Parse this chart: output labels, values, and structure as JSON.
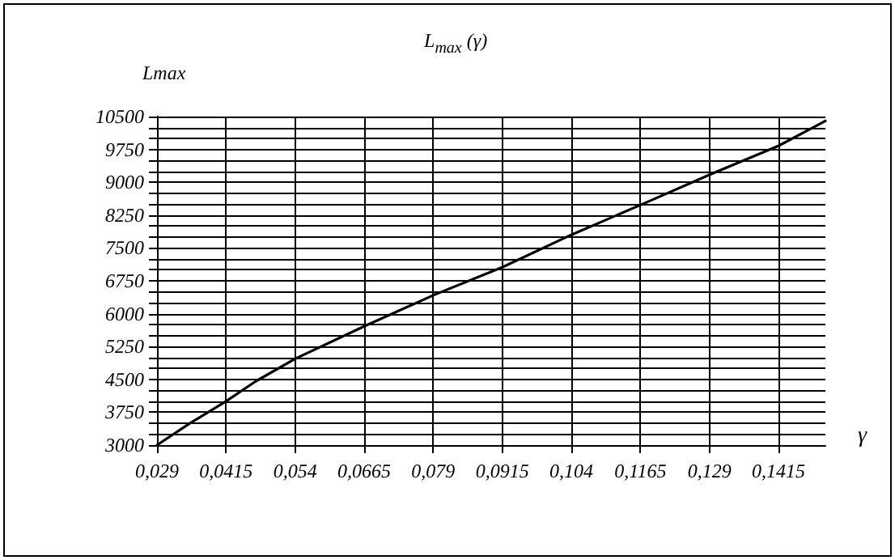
{
  "chart_data": {
    "type": "line",
    "title": "L$_{max}$ (γ)",
    "ylabel": "Lmax",
    "xlabel": "γ",
    "x": [
      0.029,
      0.035,
      0.0415,
      0.0468,
      0.054,
      0.0665,
      0.079,
      0.0915,
      0.104,
      0.1165,
      0.129,
      0.1415,
      0.15
    ],
    "series": [
      {
        "color": "#000000",
        "values": [
          3000,
          3500,
          4000,
          4450,
          4970,
          5710,
          6420,
          7060,
          7800,
          8480,
          9170,
          9830,
          10400
        ]
      }
    ],
    "xlim": [
      0.029,
      0.15
    ],
    "xticks": [
      {
        "value": 0.029,
        "label": "0,029"
      },
      {
        "value": 0.0415,
        "label": "0,0415"
      },
      {
        "value": 0.054,
        "label": "0,054"
      },
      {
        "value": 0.0665,
        "label": "0,0665"
      },
      {
        "value": 0.079,
        "label": "0,079"
      },
      {
        "value": 0.0915,
        "label": "0,0915"
      },
      {
        "value": 0.104,
        "label": "0,104"
      },
      {
        "value": 0.1165,
        "label": "0,1165"
      },
      {
        "value": 0.129,
        "label": "0,129"
      },
      {
        "value": 0.1415,
        "label": "0,1415"
      }
    ],
    "ylim": [
      3000,
      10500
    ],
    "yticks": [
      3000,
      {
        "value": 3250,
        "label": null
      },
      {
        "value": 3500,
        "label": null
      },
      3750,
      {
        "value": 4000,
        "label": null
      },
      {
        "value": 4250,
        "label": null
      },
      4500,
      {
        "value": 4750,
        "label": null
      },
      {
        "value": 5000,
        "label": null
      },
      5250,
      {
        "value": 5500,
        "label": null
      },
      {
        "value": 5750,
        "label": null
      },
      6000,
      {
        "value": 6250,
        "label": null
      },
      {
        "value": 6500,
        "label": null
      },
      6750,
      {
        "value": 7000,
        "label": null
      },
      {
        "value": 7250,
        "label": null
      },
      7500,
      {
        "value": 7750,
        "label": null
      },
      {
        "value": 8000,
        "label": null
      },
      8250,
      {
        "value": 8500,
        "label": null
      },
      {
        "value": 8750,
        "label": null
      },
      9000,
      {
        "value": 9250,
        "label": null
      },
      {
        "value": 9500,
        "label": null
      },
      9750,
      {
        "value": 10000,
        "label": null
      },
      {
        "value": 10250,
        "label": null
      },
      10500
    ],
    "grid": true,
    "marker": "none",
    "line_style": "solid"
  }
}
